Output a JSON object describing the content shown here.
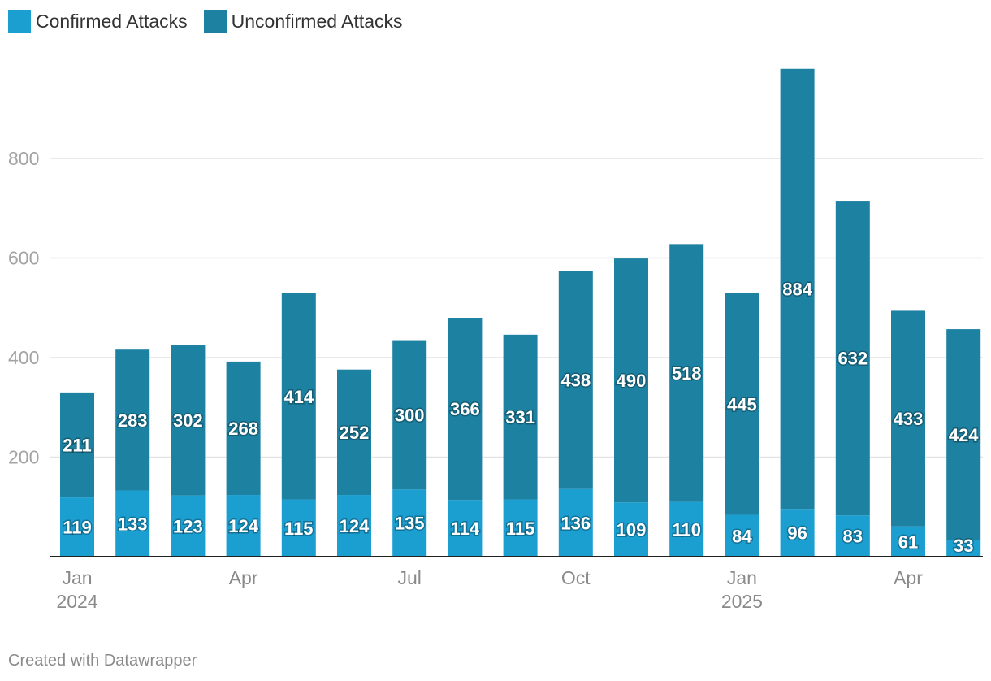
{
  "legend": {
    "confirmed": {
      "label": "Confirmed Attacks",
      "color": "#1b9fd1"
    },
    "unconfirmed": {
      "label": "Unconfirmed Attacks",
      "color": "#1d81a2"
    }
  },
  "footer": "Created with Datawrapper",
  "chart_data": {
    "type": "bar",
    "stacked": true,
    "title": "",
    "xlabel": "",
    "ylabel": "",
    "ylim": [
      0,
      980
    ],
    "yticks": [
      200,
      400,
      600,
      800
    ],
    "grid": true,
    "legend_position": "top-left",
    "categories": [
      "2024-01",
      "2024-02",
      "2024-03",
      "2024-04",
      "2024-05",
      "2024-06",
      "2024-07",
      "2024-08",
      "2024-09",
      "2024-10",
      "2024-11",
      "2024-12",
      "2025-01",
      "2025-02",
      "2025-03",
      "2025-04",
      "2025-05"
    ],
    "x_tick_labels": [
      {
        "index": 0,
        "lines": [
          "Jan",
          "2024"
        ]
      },
      {
        "index": 3,
        "lines": [
          "Apr"
        ]
      },
      {
        "index": 6,
        "lines": [
          "Jul"
        ]
      },
      {
        "index": 9,
        "lines": [
          "Oct"
        ]
      },
      {
        "index": 12,
        "lines": [
          "Jan",
          "2025"
        ]
      },
      {
        "index": 15,
        "lines": [
          "Apr"
        ]
      }
    ],
    "series": [
      {
        "name": "Confirmed Attacks",
        "color": "#1b9fd1",
        "values": [
          119,
          133,
          123,
          124,
          115,
          124,
          135,
          114,
          115,
          136,
          109,
          110,
          84,
          96,
          83,
          61,
          33
        ]
      },
      {
        "name": "Unconfirmed Attacks",
        "color": "#1d81a2",
        "values": [
          211,
          283,
          302,
          268,
          414,
          252,
          300,
          366,
          331,
          438,
          490,
          518,
          445,
          884,
          632,
          433,
          424
        ]
      }
    ]
  }
}
